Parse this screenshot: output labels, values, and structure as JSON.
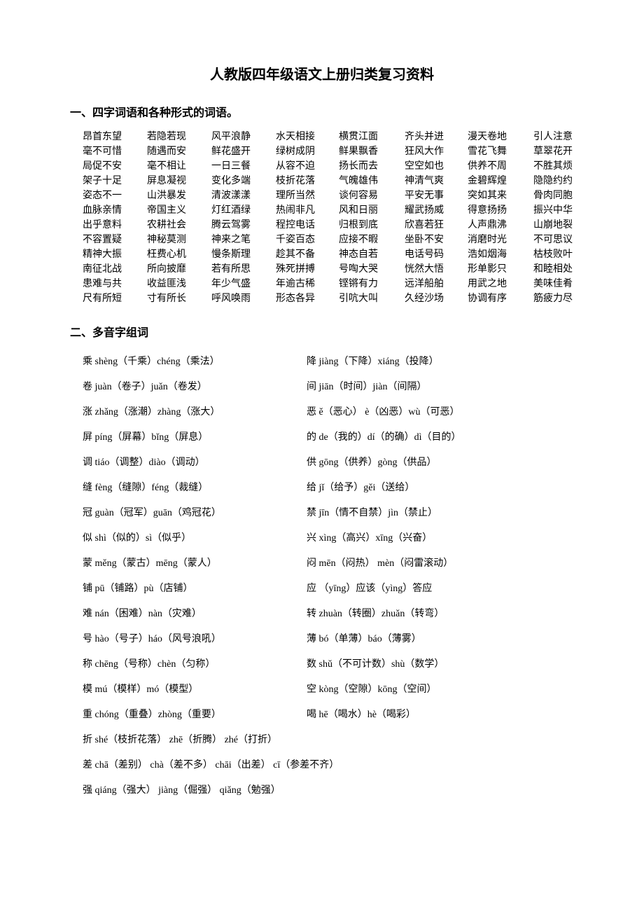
{
  "title": "人教版四年级语文上册归类复习资料",
  "section1_head": "一、四字词语和各种形式的词语。",
  "section2_head": "二、多音字组词",
  "idioms": [
    [
      "昂首东望",
      "若隐若现",
      "风平浪静",
      "水天相接",
      "横贯江面",
      "齐头并进",
      "漫天卷地",
      "引人注意"
    ],
    [
      "毫不可惜",
      "随遇而安",
      "鲜花盛开",
      "绿树成阴",
      "鲜果飘香",
      "狂风大作",
      "雪花飞舞",
      "草翠花开"
    ],
    [
      "局促不安",
      "毫不相让",
      "一日三餐",
      "从容不迫",
      "扬长而去",
      "空空如也",
      "供养不周",
      "不胜其烦"
    ],
    [
      "架子十足",
      "屏息凝视",
      "变化多端",
      "枝折花落",
      "气魄雄伟",
      "神清气爽",
      "金碧辉煌",
      "隐隐约约"
    ],
    [
      "姿态不一",
      "山洪暴发",
      "清波漾漾",
      "理所当然",
      "谈何容易",
      "平安无事",
      "突如其来",
      "骨肉同胞"
    ],
    [
      "血脉亲情",
      "帝国主义",
      "灯红酒绿",
      "热闹非凡",
      "风和日丽",
      "耀武扬威",
      "得意扬扬",
      "振兴中华"
    ],
    [
      "出乎意料",
      "农耕社会",
      "腾云驾雾",
      "程控电话",
      "归根到底",
      "欣喜若狂",
      "人声鼎沸",
      "山崩地裂"
    ],
    [
      "不容置疑",
      "神秘莫测",
      "神来之笔",
      "千姿百态",
      "应接不暇",
      "坐卧不安",
      "消磨时光",
      "不可思议"
    ],
    [
      "精神大振",
      "枉费心机",
      "慢条斯理",
      "趁其不备",
      "神态自若",
      "电话号码",
      "浩如烟海",
      "枯枝败叶"
    ],
    [
      "南征北战",
      "所向披靡",
      "若有所思",
      "殊死拼搏",
      "号啕大哭",
      "恍然大悟",
      "形单影只",
      "和睦相处"
    ],
    [
      "患难与共",
      "收益匪浅",
      "年少气盛",
      "年逾古稀",
      "铿锵有力",
      "远洋船舶",
      "用武之地",
      "美味佳肴"
    ],
    [
      "尺有所短",
      "寸有所长",
      "呼风唤雨",
      "形态各异",
      "引吭大叫",
      "久经沙场",
      "协调有序",
      "筋疲力尽"
    ]
  ],
  "idiom_widths": [
    80,
    80,
    80,
    80,
    80,
    80,
    80,
    80
  ],
  "poly_pairs": [
    {
      "l": "乘 shèng（千乘）chéng（乘法）",
      "r": "降 jiàng（下降）xiáng（投降）"
    },
    {
      "l": "卷 juàn（卷子）juǎn（卷发）",
      "r": "间 jiān（时间）jiàn（间隔）"
    },
    {
      "l": "涨 zhǎng（涨潮）zhàng（涨大）",
      "r": "恶 ě（恶心） è（凶恶）wù（可恶）"
    },
    {
      "l": "屏 píng（屏幕）bǐng（屏息）",
      "r": "的 de（我的）dí（的确）dì（目的）"
    },
    {
      "l": "调 tiáo（调整）diào（调动）",
      "r": "供 gōng（供养）gòng（供品）"
    },
    {
      "l": "缝 fèng（缝隙）féng（裁缝）",
      "r": "给 jǐ（给予）gěi（送给）"
    },
    {
      "l": "冠 guàn（冠军）guān（鸡冠花）",
      "r": "禁 jīn（情不自禁）jìn（禁止）"
    },
    {
      "l": "似 shì（似的）sì（似乎）",
      "r": "兴 xìng（高兴）xīng（兴奋）"
    },
    {
      "l": "蒙 měng（蒙古）mēng（蒙人）",
      "r": "闷 mēn（闷热） mèn（闷雷滚动）"
    },
    {
      "l": "铺 pū（铺路）pù（店铺）",
      "r": "应 （yīng）应该（yìng）答应"
    },
    {
      "l": "难 nán（困难）nàn（灾难）",
      "r": "转 zhuàn（转圈）zhuǎn（转弯）"
    },
    {
      "l": "号 hào（号子）háo（风号浪吼）",
      "r": "薄 bó（单薄）báo（薄雾）"
    },
    {
      "l": "称 chēng（号称）chèn（匀称）",
      "r": "数 shǔ（不可计数）shù（数学）"
    },
    {
      "l": "模 mú（模样）mó（模型）",
      "r": "空 kòng（空隙）kōng（空间）"
    },
    {
      "l": "重 chóng（重叠）zhòng（重要）",
      "r": "喝 hē（喝水）hè（喝彩）"
    }
  ],
  "poly_full": [
    "折 shé（枝折花落） zhē（折腾） zhé（打折）",
    "差 chā（差别） chà（差不多） chāi（出差） cī（参差不齐）",
    "强 qiáng（强大） jiàng（倔强） qiǎng（勉强）"
  ]
}
